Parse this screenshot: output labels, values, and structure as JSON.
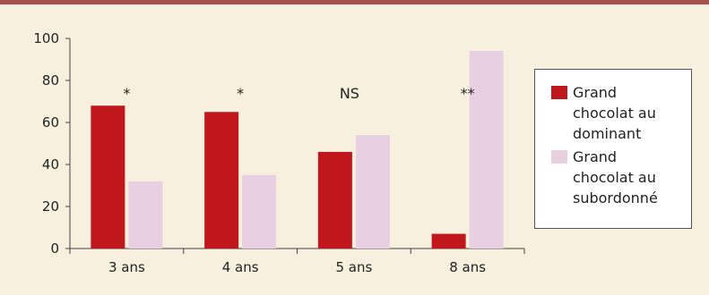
{
  "chart_data": {
    "type": "bar",
    "categories": [
      "3 ans",
      "4 ans",
      "5 ans",
      "8 ans"
    ],
    "series": [
      {
        "name": "Grand chocolat au dominant",
        "values": [
          68,
          65,
          46,
          7
        ],
        "color": "#c0171d"
      },
      {
        "name": "Grand chocolat au subordonné",
        "values": [
          32,
          35,
          54,
          94
        ],
        "color": "#e8cfe2"
      }
    ],
    "significance": [
      "*",
      "*",
      "NS",
      "**"
    ],
    "ylim": [
      0,
      100
    ],
    "yticks": [
      0,
      20,
      40,
      60,
      80,
      100
    ],
    "grid": false,
    "legend_position": "right"
  },
  "colors": {
    "accent": "#a8504b",
    "background": "#f8f0de"
  }
}
